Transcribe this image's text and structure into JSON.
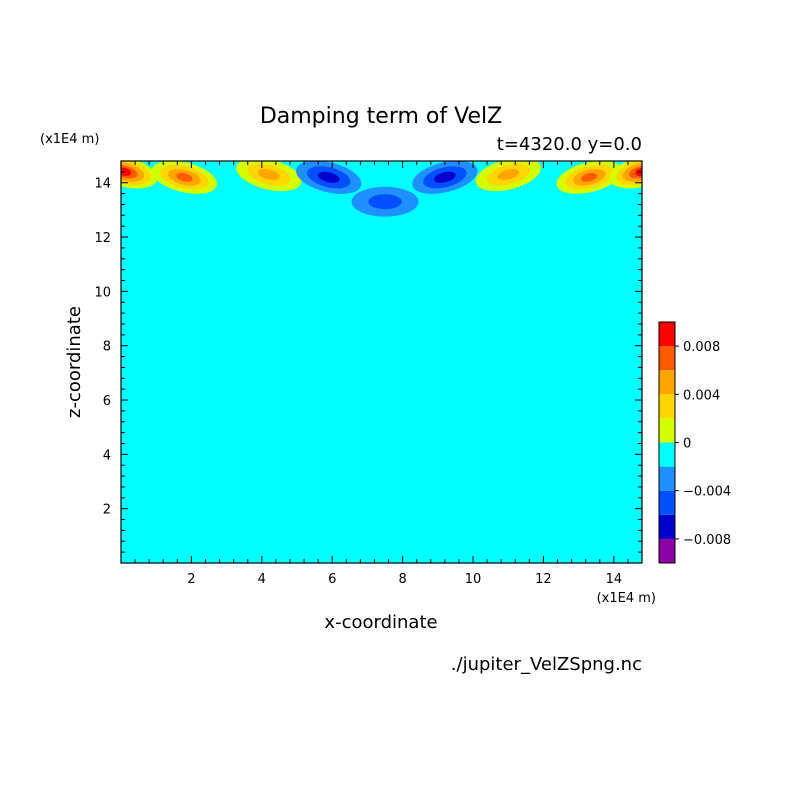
{
  "chart_data": {
    "type": "heatmap",
    "title": "Damping term of VelZ",
    "subtitle": "t=4320.0 y=0.0",
    "xlabel": "x-coordinate",
    "ylabel": "z-coordinate",
    "x_unit": "(x1E4 m)",
    "y_unit": "(x1E4 m)",
    "xlim": [
      0,
      14.8
    ],
    "ylim": [
      0,
      14.8
    ],
    "x_ticks": [
      2,
      4,
      6,
      8,
      10,
      12,
      14
    ],
    "y_ticks": [
      2,
      4,
      6,
      8,
      10,
      12,
      14
    ],
    "grid": false,
    "legend": "right colorbar",
    "colorbar": {
      "levels": [
        -0.01,
        -0.008,
        -0.006,
        -0.004,
        -0.002,
        0,
        0.002,
        0.004,
        0.006,
        0.008,
        0.01
      ],
      "colors": [
        "#8c00a6",
        "#0000cd",
        "#0050ff",
        "#1e90ff",
        "#00ffff",
        "#d4ff00",
        "#ffd700",
        "#ffa500",
        "#ff5a00",
        "#ff0000",
        "#ffb0b0"
      ],
      "tick_labels": [
        "0.008",
        "0.004",
        "0",
        "−0.004",
        "−0.008"
      ],
      "tick_values": [
        0.008,
        0.004,
        0,
        -0.004,
        -0.008
      ]
    },
    "background_value": 0,
    "damping_layer_z": [
      12.8,
      14.8
    ],
    "features": [
      {
        "x": 0.1,
        "z": 14.4,
        "value": 0.01,
        "kind": "min"
      },
      {
        "x": 1.8,
        "z": 14.2,
        "value": 0.009,
        "kind": "max"
      },
      {
        "x": 4.2,
        "z": 14.3,
        "value": 0.007,
        "kind": "max"
      },
      {
        "x": 5.9,
        "z": 14.2,
        "value": -0.007,
        "kind": "min"
      },
      {
        "x": 7.5,
        "z": 14.4,
        "value": -0.001,
        "kind": "min"
      },
      {
        "x": 7.5,
        "z": 13.3,
        "value": -0.004,
        "kind": "min"
      },
      {
        "x": 9.2,
        "z": 14.2,
        "value": -0.007,
        "kind": "min"
      },
      {
        "x": 11.0,
        "z": 14.3,
        "value": 0.007,
        "kind": "max"
      },
      {
        "x": 13.3,
        "z": 14.2,
        "value": 0.009,
        "kind": "max"
      },
      {
        "x": 14.8,
        "z": 14.4,
        "value": 0.01,
        "kind": "min"
      }
    ]
  },
  "footer": {
    "source_file": "./jupiter_VelZSpng.nc"
  }
}
